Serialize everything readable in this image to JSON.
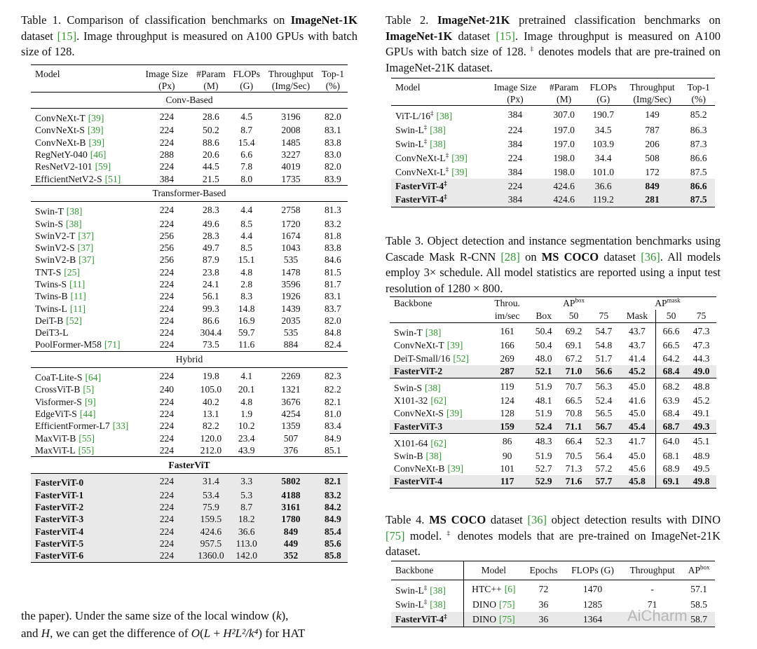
{
  "table1": {
    "caption": [
      {
        "t": "Table 1. Comparison of classification benchmarks on "
      },
      {
        "b": "ImageNet-1K"
      },
      {
        "t": " dataset "
      },
      {
        "c": "[15]"
      },
      {
        "t": ". Image throughput is measured on A100 GPUs with batch size of 128."
      }
    ],
    "header": [
      [
        "Model"
      ],
      [
        "Image Size",
        "(Px)"
      ],
      [
        "#Param",
        "(M)"
      ],
      [
        "FLOPs",
        "(G)"
      ],
      [
        "Throughput",
        "(Img/Sec)"
      ],
      [
        "Top-1",
        "(%)"
      ]
    ],
    "groups": [
      {
        "label": "Conv-Based",
        "rows": [
          {
            "name": "ConvNeXt-T",
            "cite": "[39]",
            "cells": [
              "224",
              "28.6",
              "4.5",
              "3196",
              "82.0"
            ]
          },
          {
            "name": "ConvNeXt-S",
            "cite": "[39]",
            "cells": [
              "224",
              "50.2",
              "8.7",
              "2008",
              "83.1"
            ]
          },
          {
            "name": "ConvNeXt-B",
            "cite": "[39]",
            "cells": [
              "224",
              "88.6",
              "15.4",
              "1485",
              "83.8"
            ]
          },
          {
            "name": "RegNetY-040",
            "cite": "[46]",
            "cells": [
              "288",
              "20.6",
              "6.6",
              "3227",
              "83.0"
            ]
          },
          {
            "name": "ResNetV2-101",
            "cite": "[59]",
            "cells": [
              "224",
              "44.5",
              "7.8",
              "4019",
              "82.0"
            ]
          },
          {
            "name": "EfficientNetV2-S",
            "cite": "[51]",
            "cells": [
              "384",
              "21.5",
              "8.0",
              "1735",
              "83.9"
            ]
          }
        ]
      },
      {
        "label": "Transformer-Based",
        "rows": [
          {
            "name": "Swin-T",
            "cite": "[38]",
            "cells": [
              "224",
              "28.3",
              "4.4",
              "2758",
              "81.3"
            ]
          },
          {
            "name": "Swin-S",
            "cite": "[38]",
            "cells": [
              "224",
              "49.6",
              "8.5",
              "1720",
              "83.2"
            ]
          },
          {
            "name": "SwinV2-T",
            "cite": "[37]",
            "cells": [
              "256",
              "28.3",
              "4.4",
              "1674",
              "81.8"
            ]
          },
          {
            "name": "SwinV2-S",
            "cite": "[37]",
            "cells": [
              "256",
              "49.7",
              "8.5",
              "1043",
              "83.8"
            ]
          },
          {
            "name": "SwinV2-B",
            "cite": "[37]",
            "cells": [
              "256",
              "87.9",
              "15.1",
              "535",
              "84.6"
            ]
          },
          {
            "name": "TNT-S",
            "cite": "[25]",
            "cells": [
              "224",
              "23.8",
              "4.8",
              "1478",
              "81.5"
            ]
          },
          {
            "name": "Twins-S",
            "cite": "[11]",
            "cells": [
              "224",
              "24.1",
              "2.8",
              "3596",
              "81.7"
            ]
          },
          {
            "name": "Twins-B",
            "cite": "[11]",
            "cells": [
              "224",
              "56.1",
              "8.3",
              "1926",
              "83.1"
            ]
          },
          {
            "name": "Twins-L",
            "cite": "[11]",
            "cells": [
              "224",
              "99.3",
              "14.8",
              "1439",
              "83.7"
            ]
          },
          {
            "name": "DeiT-B",
            "cite": "[52]",
            "cells": [
              "224",
              "86.6",
              "16.9",
              "2035",
              "82.0"
            ]
          },
          {
            "name": "DeiT3-L",
            "cells": [
              "224",
              "304.4",
              "59.7",
              "535",
              "84.8"
            ]
          },
          {
            "name": "PoolFormer-M58",
            "cite": "[71]",
            "cells": [
              "224",
              "73.5",
              "11.6",
              "884",
              "82.4"
            ]
          }
        ]
      },
      {
        "label": "Hybrid",
        "rows": [
          {
            "name": "CoaT-Lite-S",
            "cite": "[64]",
            "cells": [
              "224",
              "19.8",
              "4.1",
              "2269",
              "82.3"
            ]
          },
          {
            "name": "CrossViT-B",
            "cite": "[5]",
            "cells": [
              "240",
              "105.0",
              "20.1",
              "1321",
              "82.2"
            ]
          },
          {
            "name": "Visformer-S",
            "cite": "[9]",
            "cells": [
              "224",
              "40.2",
              "4.8",
              "3676",
              "82.1"
            ]
          },
          {
            "name": "EdgeViT-S",
            "cite": "[44]",
            "cells": [
              "224",
              "13.1",
              "1.9",
              "4254",
              "81.0"
            ]
          },
          {
            "name": "EfficientFormer-L7",
            "cite": "[33]",
            "cells": [
              "224",
              "82.2",
              "10.2",
              "1359",
              "83.4"
            ]
          },
          {
            "name": "MaxViT-B",
            "cite": "[55]",
            "cells": [
              "224",
              "120.0",
              "23.4",
              "507",
              "84.9"
            ]
          },
          {
            "name": "MaxViT-L",
            "cite": "[55]",
            "cells": [
              "224",
              "212.0",
              "43.9",
              "376",
              "85.1"
            ]
          }
        ]
      },
      {
        "label": "FasterViT",
        "bold": true,
        "rows": [
          {
            "name": "FasterViT-0",
            "bold": true,
            "shade": true,
            "boldCells": [
              3,
              4
            ],
            "cells": [
              "224",
              "31.4",
              "3.3",
              "5802",
              "82.1"
            ]
          },
          {
            "name": "FasterViT-1",
            "bold": true,
            "shade": true,
            "boldCells": [
              3,
              4
            ],
            "cells": [
              "224",
              "53.4",
              "5.3",
              "4188",
              "83.2"
            ]
          },
          {
            "name": "FasterViT-2",
            "bold": true,
            "shade": true,
            "boldCells": [
              3,
              4
            ],
            "cells": [
              "224",
              "75.9",
              "8.7",
              "3161",
              "84.2"
            ]
          },
          {
            "name": "FasterViT-3",
            "bold": true,
            "shade": true,
            "boldCells": [
              3,
              4
            ],
            "cells": [
              "224",
              "159.5",
              "18.2",
              "1780",
              "84.9"
            ]
          },
          {
            "name": "FasterViT-4",
            "bold": true,
            "shade": true,
            "boldCells": [
              3,
              4
            ],
            "cells": [
              "224",
              "424.6",
              "36.6",
              "849",
              "85.4"
            ]
          },
          {
            "name": "FasterViT-5",
            "bold": true,
            "shade": true,
            "boldCells": [
              3,
              4
            ],
            "cells": [
              "224",
              "957.5",
              "113.0",
              "449",
              "85.6"
            ]
          },
          {
            "name": "FasterViT-6",
            "bold": true,
            "shade": true,
            "boldCells": [
              3,
              4
            ],
            "cells": [
              "224",
              "1360.0",
              "142.0",
              "352",
              "85.8"
            ]
          }
        ]
      }
    ]
  },
  "table2": {
    "caption": [
      {
        "t": "Table 2. "
      },
      {
        "b": "ImageNet-21K"
      },
      {
        "t": " pretrained classification benchmarks on "
      },
      {
        "b": "ImageNet-1K"
      },
      {
        "t": " dataset "
      },
      {
        "c": "[15]"
      },
      {
        "t": ". Image throughput is measured on A100 GPUs with batch size of 128. "
      },
      {
        "s": "‡"
      },
      {
        "t": " denotes models that are pre-trained on ImageNet-21K dataset."
      }
    ],
    "header": [
      [
        "Model"
      ],
      [
        "Image Size",
        "(Px)"
      ],
      [
        "#Param",
        "(M)"
      ],
      [
        "FLOPs",
        "(G)"
      ],
      [
        "Throughput",
        "(Img/Sec)"
      ],
      [
        "Top-1",
        "(%)"
      ]
    ],
    "groups": [
      {
        "rows": [
          {
            "name": "ViT-L/16",
            "sup": "‡",
            "cite": "[38]",
            "cells": [
              "384",
              "307.0",
              "190.7",
              "149",
              "85.2"
            ]
          },
          {
            "name": "Swin-L",
            "sup": "‡",
            "cite": "[38]",
            "cells": [
              "224",
              "197.0",
              "34.5",
              "787",
              "86.3"
            ]
          },
          {
            "name": "Swin-L",
            "sup": "‡",
            "cite": "[38]",
            "cells": [
              "384",
              "197.0",
              "103.9",
              "206",
              "87.3"
            ]
          },
          {
            "name": "ConvNeXt-L",
            "sup": "‡",
            "cite": "[39]",
            "cells": [
              "224",
              "198.0",
              "34.4",
              "508",
              "86.6"
            ]
          },
          {
            "name": "ConvNeXt-L",
            "sup": "‡",
            "cite": "[39]",
            "cells": [
              "384",
              "198.0",
              "101.0",
              "172",
              "87.5"
            ]
          },
          {
            "name": "FasterViT-4",
            "sup": "‡",
            "bold": true,
            "shade": true,
            "boldCells": [
              3,
              4
            ],
            "cells": [
              "224",
              "424.6",
              "36.6",
              "849",
              "86.6"
            ]
          },
          {
            "name": "FasterViT-4",
            "sup": "‡",
            "bold": true,
            "shade": true,
            "boldCells": [
              3,
              4
            ],
            "cells": [
              "384",
              "424.6",
              "119.2",
              "281",
              "87.5"
            ]
          }
        ]
      }
    ]
  },
  "table3": {
    "caption": [
      {
        "t": "Table 3. Object detection and instance segmentation benchmarks using Cascade Mask R-CNN "
      },
      {
        "c": "[28]"
      },
      {
        "t": " on "
      },
      {
        "b": "MS COCO"
      },
      {
        "t": " dataset "
      },
      {
        "c": "[36]"
      },
      {
        "t": ". All models employ 3× schedule. All model statistics are reported using a input test resolution of 1280 × 800."
      }
    ],
    "header": [
      [
        "Backbone"
      ],
      [
        "Throu.",
        "im/sec"
      ]
    ],
    "spans": [
      {
        "head": {
          "base": "AP",
          "sup": "box"
        },
        "cols": [
          "Box",
          "50",
          "75"
        ]
      },
      {
        "head": {
          "base": "AP",
          "sup": "mask"
        },
        "cols": [
          "Mask",
          "50",
          "75"
        ]
      }
    ],
    "groups": [
      {
        "rows": [
          {
            "name": "Swin-T",
            "cite": "[38]",
            "cells": [
              "161",
              "50.4",
              "69.2",
              "54.7",
              "43.7",
              "66.6",
              "47.3"
            ]
          },
          {
            "name": "ConvNeXt-T",
            "cite": "[39]",
            "cells": [
              "166",
              "50.4",
              "69.1",
              "54.8",
              "43.7",
              "66.5",
              "47.3"
            ]
          },
          {
            "name": "DeiT-Small/16",
            "cite": "[52]",
            "cells": [
              "269",
              "48.0",
              "67.2",
              "51.7",
              "41.4",
              "64.2",
              "44.3"
            ]
          },
          {
            "name": "FasterViT-2",
            "bold": true,
            "shade": true,
            "boldCells": [
              0,
              1,
              2,
              3,
              4,
              5,
              6
            ],
            "cells": [
              "287",
              "52.1",
              "71.0",
              "56.6",
              "45.2",
              "68.4",
              "49.0"
            ]
          }
        ]
      },
      {
        "rows": [
          {
            "name": "Swin-S",
            "cite": "[38]",
            "cells": [
              "119",
              "51.9",
              "70.7",
              "56.3",
              "45.0",
              "68.2",
              "48.8"
            ]
          },
          {
            "name": "X101-32",
            "cite": "[62]",
            "cells": [
              "124",
              "48.1",
              "66.5",
              "52.4",
              "41.6",
              "63.9",
              "45.2"
            ]
          },
          {
            "name": "ConvNeXt-S",
            "cite": "[39]",
            "cells": [
              "128",
              "51.9",
              "70.8",
              "56.5",
              "45.0",
              "68.4",
              "49.1"
            ]
          },
          {
            "name": "FasterViT-3",
            "bold": true,
            "shade": true,
            "boldCells": [
              0,
              1,
              2,
              3,
              4,
              5,
              6
            ],
            "cells": [
              "159",
              "52.4",
              "71.1",
              "56.7",
              "45.4",
              "68.7",
              "49.3"
            ]
          }
        ]
      },
      {
        "rows": [
          {
            "name": "X101-64",
            "cite": "[62]",
            "cells": [
              "86",
              "48.3",
              "66.4",
              "52.3",
              "41.7",
              "64.0",
              "45.1"
            ]
          },
          {
            "name": "Swin-B",
            "cite": "[38]",
            "cells": [
              "90",
              "51.9",
              "70.5",
              "56.4",
              "45.0",
              "68.1",
              "48.9"
            ]
          },
          {
            "name": "ConvNeXt-B",
            "cite": "[39]",
            "cells": [
              "101",
              "52.7",
              "71.3",
              "57.2",
              "45.6",
              "68.9",
              "49.5"
            ]
          },
          {
            "name": "FasterViT-4",
            "bold": true,
            "shade": true,
            "boldCells": [
              0,
              1,
              2,
              3,
              4,
              5,
              6
            ],
            "cells": [
              "117",
              "52.9",
              "71.6",
              "57.7",
              "45.8",
              "69.1",
              "49.8"
            ]
          }
        ]
      }
    ]
  },
  "table4": {
    "caption": [
      {
        "t": "Table 4. "
      },
      {
        "b": "MS COCO"
      },
      {
        "t": " dataset "
      },
      {
        "c": "[36]"
      },
      {
        "t": " object detection results with DINO "
      },
      {
        "c": "[75]"
      },
      {
        "t": " model. "
      },
      {
        "s": "‡"
      },
      {
        "t": " denotes models that are pre-trained on ImageNet-21K dataset."
      }
    ],
    "header": [
      [
        "Backbone"
      ],
      [
        "Model"
      ],
      [
        "Epochs"
      ],
      [
        "FLOPs (G)"
      ],
      [
        "Throughput"
      ],
      [
        {
          "base": "AP",
          "sup": "box"
        }
      ]
    ],
    "groups": [
      {
        "rows": [
          {
            "name": "Swin-L",
            "sup": "‡",
            "cite": "[38]",
            "cells": [
              {
                "name": "HTC++",
                "cite": "[6]"
              },
              "72",
              "1470",
              "-",
              "57.1"
            ]
          },
          {
            "name": "Swin-L",
            "sup": "‡",
            "cite": "[38]",
            "cells": [
              {
                "name": "DINO",
                "cite": "[75]"
              },
              "36",
              "1285",
              "71",
              "58.5"
            ]
          },
          {
            "name": "FasterViT-4",
            "sup": "‡",
            "bold": true,
            "shade": true,
            "cells": [
              {
                "name": "DINO",
                "cite": "[75]"
              },
              "36",
              "1364",
              null,
              "58.7"
            ]
          }
        ]
      }
    ]
  },
  "body_text": [
    [
      {
        "t": "the paper). Under the same size of the local window ("
      },
      {
        "i": "k"
      },
      {
        "t": "),"
      }
    ],
    [
      {
        "t": "and "
      },
      {
        "i": "H"
      },
      {
        "t": ", we can get the difference of "
      },
      {
        "i": "O"
      },
      {
        "t": "("
      },
      {
        "i": "L"
      },
      {
        "t": " + "
      },
      {
        "i": "H²L²/k⁴"
      },
      {
        "t": ") for HAT"
      }
    ]
  ],
  "watermark": "AiCharm"
}
